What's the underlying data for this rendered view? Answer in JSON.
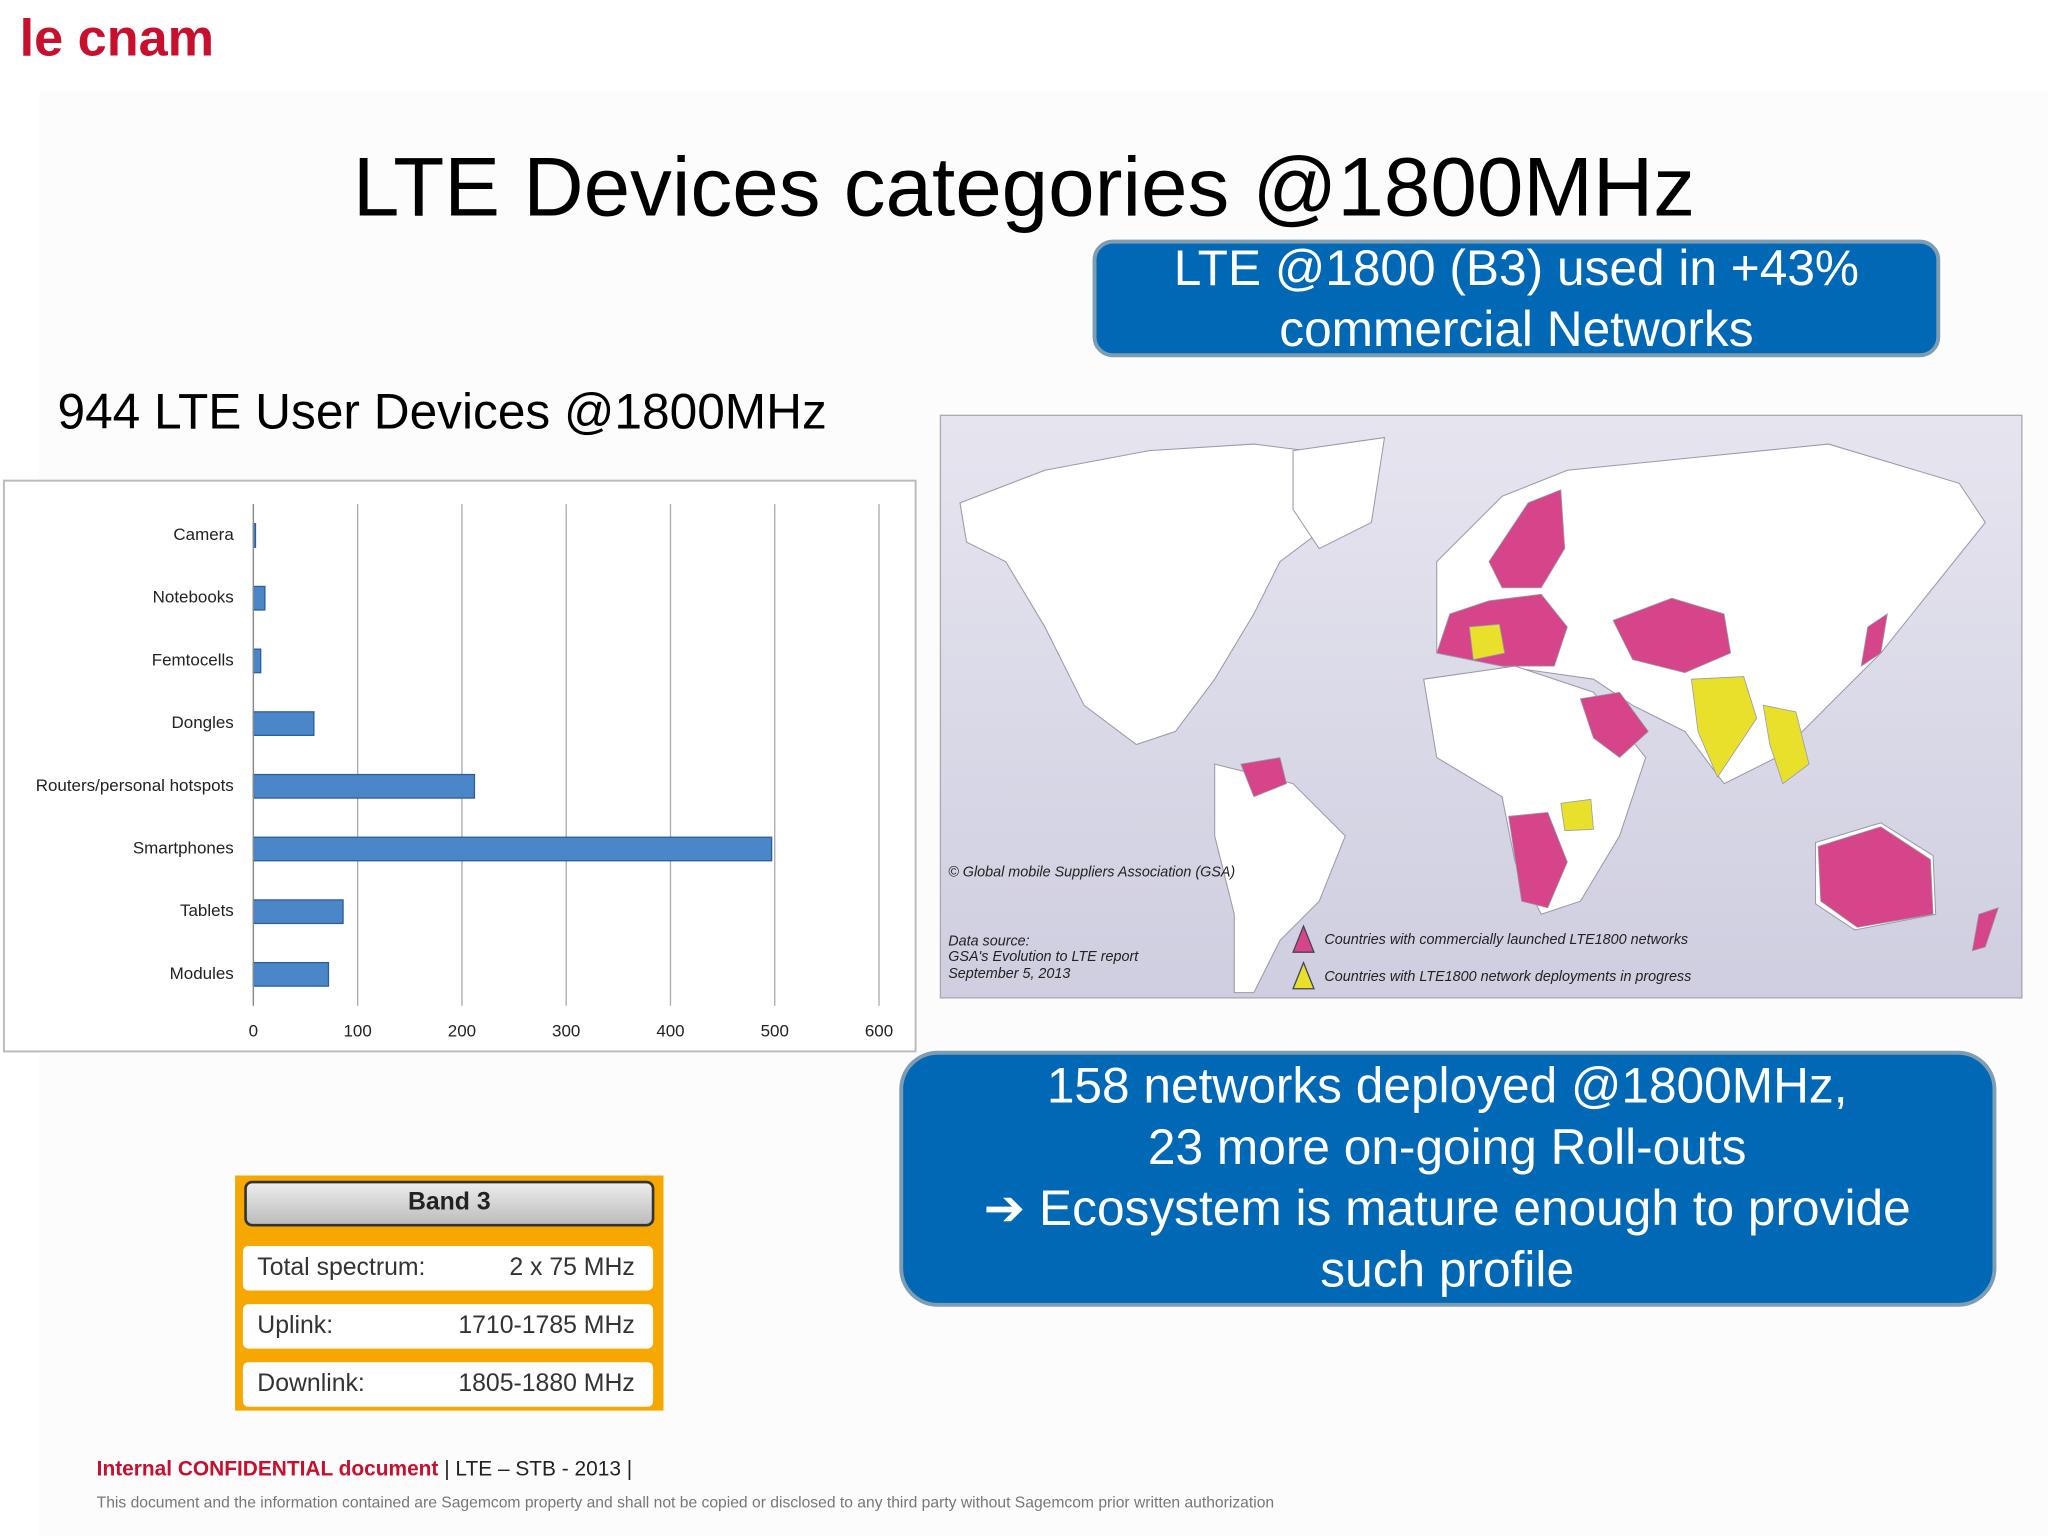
{
  "logo": "le cnam",
  "title": "LTE Devices categories @1800MHz",
  "callout_top": {
    "lines": [
      "LTE @1800 (B3) used in +43%",
      "commercial Networks"
    ]
  },
  "subtitle": "944 LTE User Devices @1800MHz",
  "chart_data": {
    "type": "bar",
    "orientation": "horizontal",
    "categories": [
      "Camera",
      "Notebooks",
      "Femtocells",
      "Dongles",
      "Routers/personal hotspots",
      "Smartphones",
      "Tablets",
      "Modules"
    ],
    "values": [
      2,
      11,
      7,
      58,
      212,
      497,
      86,
      72
    ],
    "color": "#4a86c8",
    "xlim": [
      0,
      600
    ],
    "xticks": [
      0,
      100,
      200,
      300,
      400,
      500,
      600
    ],
    "grid": true
  },
  "map": {
    "copyright": "© Global mobile Suppliers Association (GSA)",
    "source_lines": [
      "Data source:",
      "GSA's Evolution to LTE report",
      "September 5, 2013"
    ],
    "legend": [
      {
        "label": "Countries with commercially launched LTE1800 networks",
        "color": "#d6448a"
      },
      {
        "label": "Countries with LTE1800 network deployments in progress",
        "color": "#e8e02a"
      }
    ]
  },
  "callout_bottom": {
    "lines": [
      "158 networks deployed @1800MHz,",
      "23 more on-going Roll-outs",
      "➔ Ecosystem is mature enough to provide",
      "such profile"
    ]
  },
  "band_table": {
    "title": "Band 3",
    "rows": [
      [
        "Total spectrum:",
        "2 x 75 MHz"
      ],
      [
        "Uplink:",
        "1710-1785 MHz"
      ],
      [
        "Downlink:",
        "1805-1880 MHz"
      ]
    ]
  },
  "footer": {
    "confidential": "Internal CONFIDENTIAL document",
    "reference": " | LTE – STB -  2013  |",
    "disclaimer": "This document and the information contained are Sagemcom property and shall not be copied or disclosed to any third party without Sagemcom prior written authorization"
  }
}
